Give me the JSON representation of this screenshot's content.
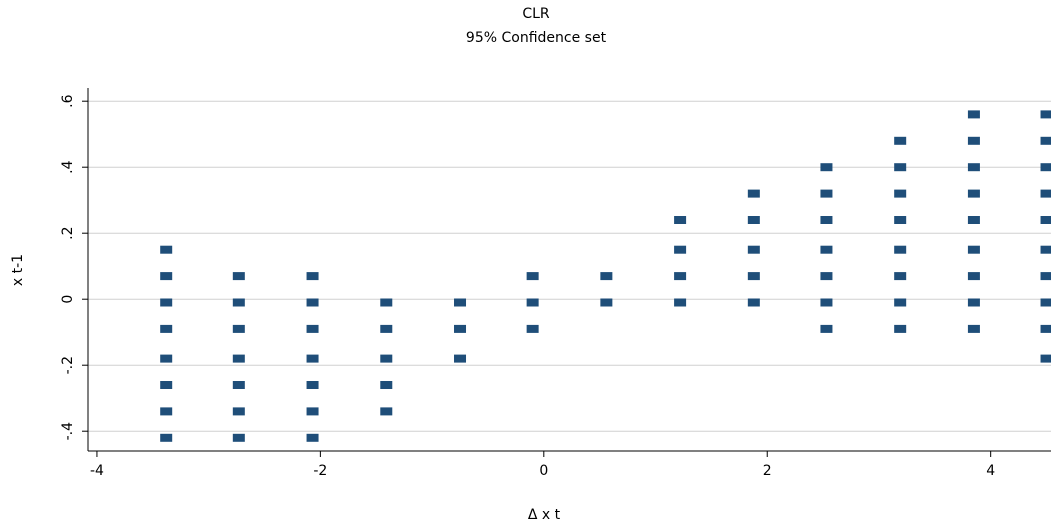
{
  "chart_data": {
    "type": "scatter",
    "title": "CLR",
    "subtitle": "95% Confidence set",
    "xlabel": "Δ x t",
    "ylabel": "x t-1",
    "color": "#1f4e79",
    "x": [
      -3.38,
      -3.38,
      -3.38,
      -3.38,
      -3.38,
      -3.38,
      -3.38,
      -3.38,
      -2.73,
      -2.73,
      -2.73,
      -2.73,
      -2.73,
      -2.73,
      -2.73,
      -2.07,
      -2.07,
      -2.07,
      -2.07,
      -2.07,
      -2.07,
      -2.07,
      -1.41,
      -1.41,
      -1.41,
      -1.41,
      -1.41,
      -0.75,
      -0.75,
      -0.75,
      -0.1,
      -0.1,
      -0.1,
      0.56,
      0.56,
      1.22,
      1.22,
      1.22,
      1.22,
      1.88,
      1.88,
      1.88,
      1.88,
      1.88,
      2.53,
      2.53,
      2.53,
      2.53,
      2.53,
      2.53,
      2.53,
      3.19,
      3.19,
      3.19,
      3.19,
      3.19,
      3.19,
      3.19,
      3.19,
      3.85,
      3.85,
      3.85,
      3.85,
      3.85,
      3.85,
      3.85,
      3.85,
      3.85,
      4.5,
      4.5,
      4.5,
      4.5,
      4.5,
      4.5,
      4.5,
      4.5,
      4.5,
      4.5
    ],
    "values": [
      0.15,
      0.07,
      -0.01,
      -0.09,
      -0.18,
      -0.26,
      -0.34,
      -0.42,
      0.07,
      -0.01,
      -0.09,
      -0.18,
      -0.26,
      -0.34,
      -0.42,
      0.07,
      -0.01,
      -0.09,
      -0.18,
      -0.26,
      -0.34,
      -0.42,
      -0.01,
      -0.09,
      -0.18,
      -0.26,
      -0.34,
      -0.01,
      -0.09,
      -0.18,
      0.07,
      -0.01,
      -0.09,
      0.07,
      -0.01,
      0.24,
      0.15,
      0.07,
      -0.01,
      0.32,
      0.24,
      0.15,
      0.07,
      -0.01,
      0.4,
      0.32,
      0.24,
      0.15,
      0.07,
      -0.01,
      -0.09,
      0.48,
      0.4,
      0.32,
      0.24,
      0.15,
      0.07,
      -0.01,
      -0.09,
      0.56,
      0.48,
      0.4,
      0.32,
      0.24,
      0.15,
      0.07,
      -0.01,
      -0.09,
      0.56,
      0.48,
      0.4,
      0.32,
      0.24,
      0.15,
      0.07,
      -0.01,
      -0.09,
      -0.18
    ],
    "xlim": [
      -4.08,
      4.54
    ],
    "ylim": [
      -0.46,
      0.64
    ],
    "xticks": [
      -4,
      -2,
      0,
      2,
      4
    ],
    "yticks": [
      {
        "value": -0.4,
        "label": "-.4"
      },
      {
        "value": -0.2,
        "label": "-.2"
      },
      0,
      {
        "value": 0.2,
        "label": ".2"
      },
      {
        "value": 0.4,
        "label": ".4"
      },
      {
        "value": 0.6,
        "label": ".6"
      }
    ],
    "grid": true
  }
}
